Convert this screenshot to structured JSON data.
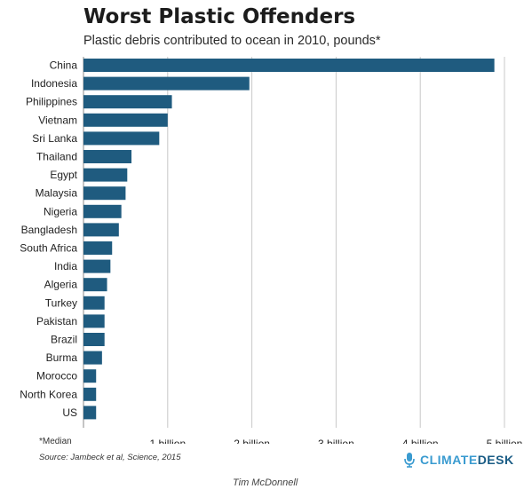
{
  "chart_data": {
    "type": "bar",
    "orientation": "horizontal",
    "title": "Worst Plastic Offenders",
    "subtitle": "Plastic debris contributed to ocean in 2010, pounds*",
    "categories": [
      "China",
      "Indonesia",
      "Philippines",
      "Vietnam",
      "Sri Lanka",
      "Thailand",
      "Egypt",
      "Malaysia",
      "Nigeria",
      "Bangladesh",
      "South Africa",
      "India",
      "Algeria",
      "Turkey",
      "Pakistan",
      "Brazil",
      "Burma",
      "Morocco",
      "North Korea",
      "US"
    ],
    "values": [
      4.88,
      1.97,
      1.05,
      1.0,
      0.9,
      0.57,
      0.52,
      0.5,
      0.45,
      0.42,
      0.34,
      0.32,
      0.28,
      0.25,
      0.25,
      0.25,
      0.22,
      0.15,
      0.15,
      0.15
    ],
    "unit": "billion pounds",
    "xlim": [
      0,
      5
    ],
    "xticks": [
      1,
      2,
      3,
      4,
      5
    ],
    "xtick_labels": [
      "1 billion",
      "2 billion",
      "3 billion",
      "4 billion",
      "5 billion"
    ],
    "grid": "vertical",
    "bar_color": "#1f5b7f"
  },
  "footnote": "*Median",
  "source": "Source: Jambeck et al, Science, 2015",
  "byline": "Tim McDonnell",
  "brand": {
    "part1": "CLIMATE",
    "part2": "DESK",
    "icon": "microphone-icon"
  }
}
